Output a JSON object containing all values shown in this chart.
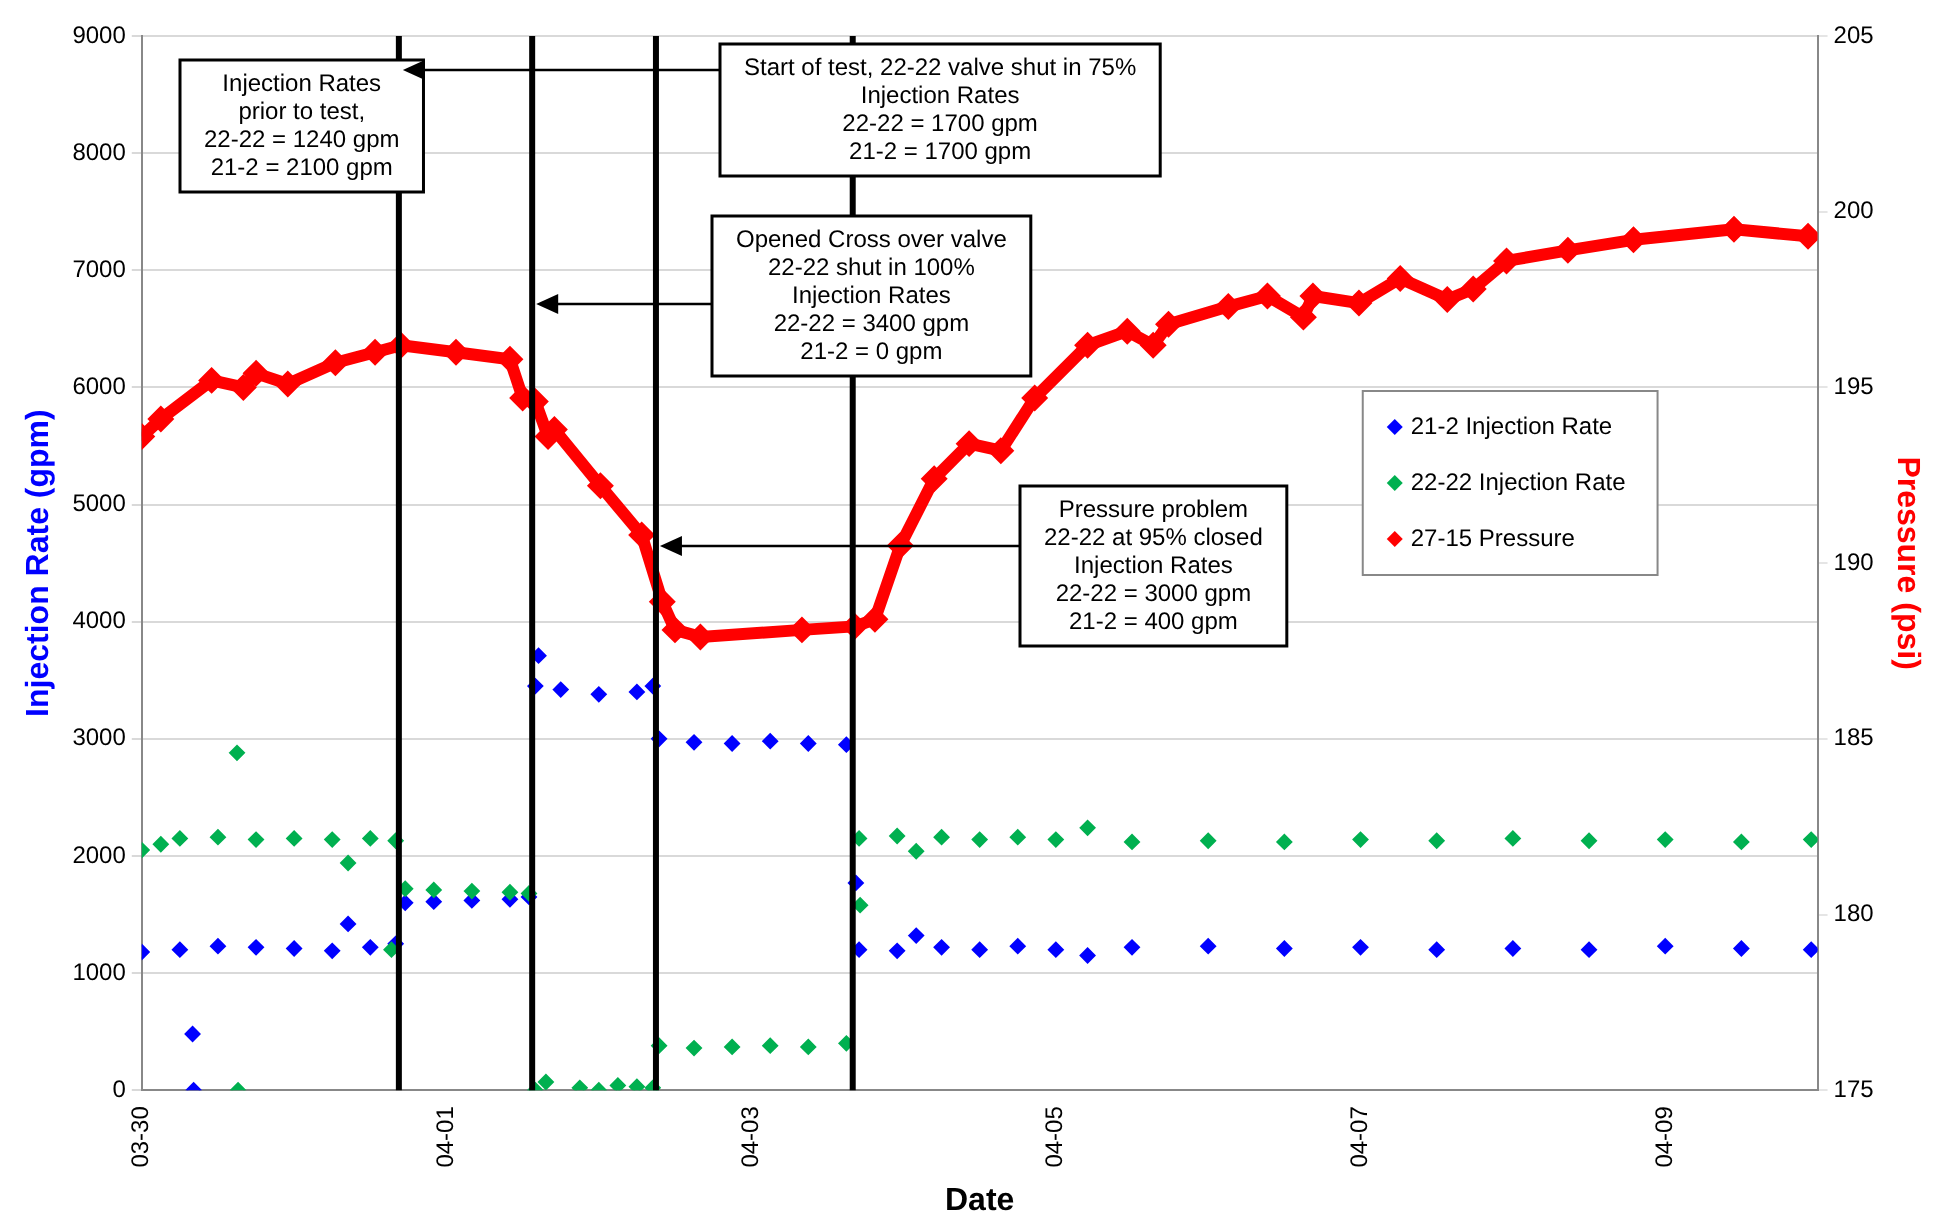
{
  "chart_data": {
    "type": "scatter",
    "xlabel": "Date",
    "ylabel": "Injection Rate (gpm)",
    "y2label": "Pressure (psi)",
    "xlim": [
      "--03-30",
      "--04-10"
    ],
    "xticks": [
      {
        "value": "--03-30",
        "label": "03-30"
      },
      {
        "value": "--04-01",
        "label": "04-01"
      },
      {
        "value": "--04-03",
        "label": "04-03"
      },
      {
        "value": "--04-05",
        "label": "04-05"
      },
      {
        "value": "--04-07",
        "label": "04-07"
      },
      {
        "value": "--04-09",
        "label": "04-09"
      }
    ],
    "ylim": [
      0,
      9000
    ],
    "yticks": [
      0,
      1000,
      2000,
      3000,
      4000,
      5000,
      6000,
      7000,
      8000,
      9000
    ],
    "y2lim": [
      175,
      205
    ],
    "y2ticks": [
      175,
      180,
      185,
      190,
      195,
      200,
      205
    ],
    "grid": "y",
    "legend": "right",
    "marker": "diamond",
    "series": [
      {
        "name": "21-2 Injection Rate",
        "color": "#0000ff",
        "x": [
          "--03-30T00:00",
          "--03-30T06:00",
          "--03-30T08:00",
          "--03-30T08:10",
          "--03-30T12:00",
          "--03-30T18:00",
          "--03-31T00:00",
          "--03-31T06:00",
          "--03-31T08:30",
          "--03-31T12:00",
          "--03-31T16:00",
          "--03-31T17:30",
          "--03-31T22:00",
          "--04-01T04:00",
          "--04-01T10:00",
          "--04-01T13:00",
          "--04-01T14:00",
          "--04-01T14:30",
          "--04-01T18:00",
          "--04-02T00:00",
          "--04-02T06:00",
          "--04-02T08:30",
          "--04-02T09:30",
          "--04-02T15:00",
          "--04-02T21:00",
          "--04-03T03:00",
          "--04-03T09:00",
          "--04-03T15:00",
          "--04-03T16:30",
          "--04-03T17:00",
          "--04-03T23:00",
          "--04-04T02:00",
          "--04-04T06:00",
          "--04-04T12:00",
          "--04-04T18:00",
          "--04-05T00:00",
          "--04-05T05:00",
          "--04-05T12:00",
          "--04-06T00:00",
          "--04-06T12:00",
          "--04-07T00:00",
          "--04-07T12:00",
          "--04-08T00:00",
          "--04-08T12:00",
          "--04-09T00:00",
          "--04-09T12:00",
          "--04-09T23:00"
        ],
        "values": [
          1180,
          1200,
          480,
          0,
          1230,
          1220,
          1210,
          1190,
          1420,
          1220,
          1250,
          1600,
          1610,
          1620,
          1630,
          1650,
          3450,
          3710,
          3420,
          3380,
          3400,
          3450,
          3000,
          2970,
          2960,
          2980,
          2960,
          2950,
          1770,
          1200,
          1190,
          1320,
          1220,
          1200,
          1230,
          1200,
          1150,
          1220,
          1230,
          1210,
          1220,
          1200,
          1210,
          1200,
          1230,
          1210,
          1200
        ]
      },
      {
        "name": "22-22 Injection Rate",
        "color": "#00b050",
        "x": [
          "--03-30T00:00",
          "--03-30T03:00",
          "--03-30T06:00",
          "--03-30T12:00",
          "--03-30T15:00",
          "--03-30T15:10",
          "--03-30T18:00",
          "--03-31T00:00",
          "--03-31T06:00",
          "--03-31T08:30",
          "--03-31T12:00",
          "--03-31T16:00",
          "--03-31T15:20",
          "--03-31T17:30",
          "--03-31T22:00",
          "--04-01T04:00",
          "--04-01T10:00",
          "--04-01T13:00",
          "--04-01T14:00",
          "--04-01T15:40",
          "--04-01T21:00",
          "--04-02T00:00",
          "--04-02T03:00",
          "--04-02T06:00",
          "--04-02T08:30",
          "--04-02T09:30",
          "--04-02T15:00",
          "--04-02T21:00",
          "--04-03T03:00",
          "--04-03T09:00",
          "--04-03T15:00",
          "--04-03T17:10",
          "--04-03T17:00",
          "--04-03T23:00",
          "--04-04T02:00",
          "--04-04T06:00",
          "--04-04T12:00",
          "--04-04T18:00",
          "--04-05T00:00",
          "--04-05T05:00",
          "--04-05T12:00",
          "--04-06T00:00",
          "--04-06T12:00",
          "--04-07T00:00",
          "--04-07T12:00",
          "--04-08T00:00",
          "--04-08T12:00",
          "--04-09T00:00",
          "--04-09T12:00",
          "--04-09T23:00"
        ],
        "values": [
          2050,
          2100,
          2150,
          2160,
          2880,
          0,
          2140,
          2150,
          2140,
          1940,
          2150,
          2130,
          1200,
          1720,
          1710,
          1700,
          1690,
          1680,
          0,
          70,
          20,
          0,
          40,
          30,
          20,
          380,
          360,
          370,
          380,
          370,
          400,
          1580,
          2150,
          2170,
          2040,
          2160,
          2140,
          2160,
          2140,
          2240,
          2120,
          2130,
          2120,
          2140,
          2130,
          2150,
          2130,
          2140,
          2120,
          2140
        ]
      },
      {
        "name": "27-15 Pressure",
        "color": "#ff0000",
        "type": "line",
        "axis": "y2",
        "x": [
          "--03-30T00:00",
          "--03-30T03:00",
          "--03-30T11:00",
          "--03-30T16:00",
          "--03-30T18:00",
          "--03-30T23:00",
          "--03-31T06:30",
          "--03-31T12:45",
          "--03-31T16:50",
          "--04-01T01:30",
          "--04-01T10:00",
          "--04-01T12:00",
          "--04-01T14:00",
          "--04-01T16:00",
          "--04-01T17:00",
          "--04-02T00:15",
          "--04-02T06:45",
          "--04-02T10:00",
          "--04-02T12:00",
          "--04-02T16:00",
          "--04-03T08:00",
          "--04-03T16:20",
          "--04-03T19:30",
          "--04-03T23:30",
          "--04-04T04:50",
          "--04-04T10:20",
          "--04-04T15:20",
          "--04-04T20:40",
          "--04-05T05:00",
          "--04-05T11:15",
          "--04-05T15:20",
          "--04-05T17:45",
          "--04-06T03:10",
          "--04-06T09:20",
          "--04-06T15:00",
          "--04-06T16:30",
          "--04-06T23:45",
          "--04-07T06:15",
          "--04-07T13:40",
          "--04-07T17:45",
          "--04-07T23:00",
          "--04-08T08:40",
          "--04-08T19:00",
          "--04-09T10:50",
          "--04-09T22:30"
        ],
        "values": [
          193.6,
          194.1,
          195.2,
          195.0,
          195.4,
          195.1,
          195.7,
          196.0,
          196.2,
          196.0,
          195.8,
          194.7,
          194.6,
          193.6,
          193.8,
          192.2,
          190.8,
          188.9,
          188.1,
          187.9,
          188.1,
          188.2,
          188.4,
          190.5,
          192.4,
          193.4,
          193.2,
          194.7,
          196.2,
          196.6,
          196.2,
          196.8,
          197.3,
          197.6,
          197.0,
          197.6,
          197.4,
          198.1,
          197.5,
          197.8,
          198.6,
          198.9,
          199.2,
          199.5,
          199.3
        ]
      }
    ],
    "ref_lines": [
      {
        "axis": "x",
        "value": "--03-31T16:30",
        "color": "#000000",
        "label": "Start of test, 22-22 valve shut in 75%\nInjection Rates\n22-22 = 1700 gpm\n21-2 = 1700 gpm"
      },
      {
        "axis": "x",
        "value": "--04-01T13:30",
        "color": "#000000",
        "label": "Opened Cross over valve\n22-22 shut in 100%\nInjection Rates\n22-22 = 3400 gpm\n21-2 = 0 gpm"
      },
      {
        "axis": "x",
        "value": "--04-02T09:00",
        "color": "#000000",
        "label": "Pressure problem\n22-22 at 95% closed\nInjection Rates\n22-22 = 3000 gpm\n21-2 = 400 gpm"
      },
      {
        "axis": "x",
        "value": "--04-03T16:00",
        "color": "#000000"
      }
    ],
    "annotations": [
      "Injection Rates\nprior to test,\n22-22 = 1240 gpm\n21-2 = 2100 gpm"
    ]
  }
}
